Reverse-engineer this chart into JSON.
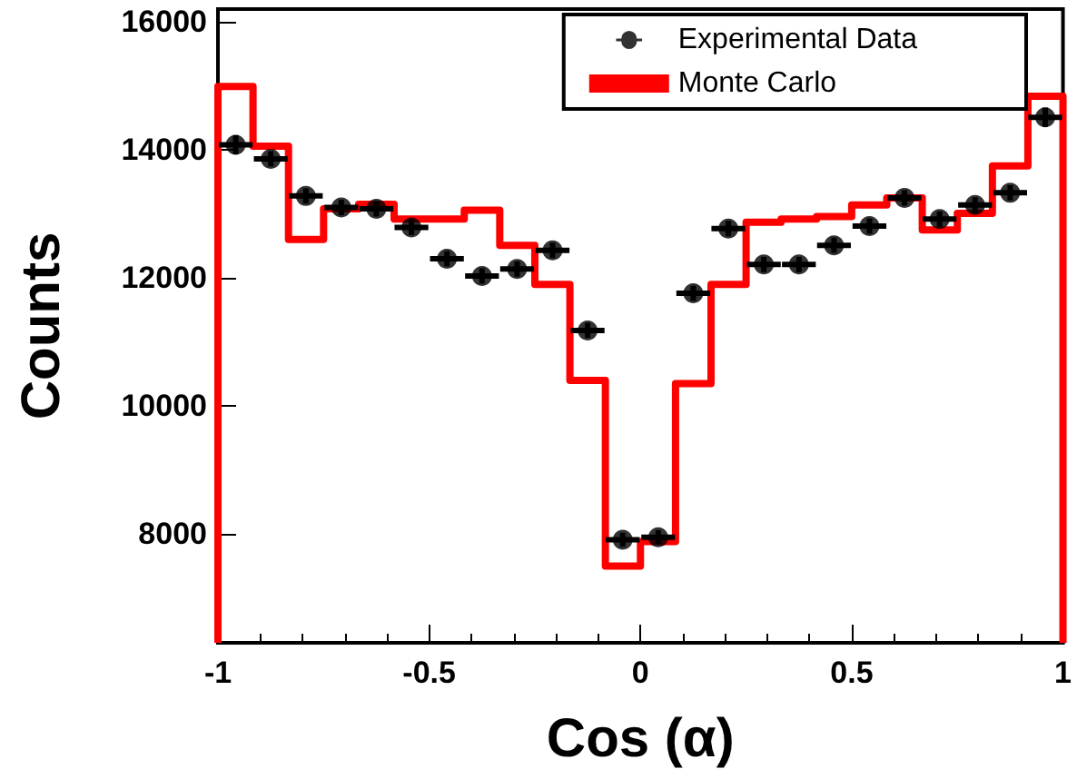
{
  "chart_data": {
    "type": "scatter",
    "xlabel": "Cos (α)",
    "ylabel": "Counts",
    "xlim": [
      -1,
      1
    ],
    "xticks": [
      -1,
      -0.5,
      0,
      0.5,
      1
    ],
    "ylim": [
      6300,
      16200
    ],
    "yticks": [
      8000,
      10000,
      12000,
      14000,
      16000
    ],
    "grid": false,
    "legend": "top right",
    "marker": "circle",
    "series": [
      {
        "name": "Experimental Data",
        "color": "#000000",
        "x": [
          -0.958,
          -0.875,
          -0.792,
          -0.708,
          -0.625,
          -0.542,
          -0.458,
          -0.375,
          -0.292,
          -0.208,
          -0.125,
          -0.042,
          0.042,
          0.125,
          0.208,
          0.292,
          0.375,
          0.458,
          0.542,
          0.625,
          0.708,
          0.792,
          0.875,
          0.958
        ],
        "values": [
          14080,
          13860,
          13280,
          13100,
          13080,
          12790,
          12300,
          12030,
          12140,
          12430,
          11180,
          7910,
          7950,
          11760,
          12770,
          12210,
          12210,
          12510,
          12810,
          13250,
          12920,
          13140,
          13330,
          14510
        ],
        "errors": [
          150,
          120,
          120,
          120,
          120,
          120,
          120,
          120,
          120,
          120,
          120,
          110,
          110,
          120,
          120,
          120,
          120,
          120,
          120,
          120,
          120,
          120,
          120,
          150
        ],
        "xerrors": [
          0.04,
          0.04,
          0.04,
          0.04,
          0.04,
          0.04,
          0.04,
          0.04,
          0.04,
          0.04,
          0.04,
          0.04,
          0.04,
          0.04,
          0.04,
          0.04,
          0.04,
          0.04,
          0.04,
          0.04,
          0.04,
          0.04,
          0.04,
          0.04
        ]
      },
      {
        "name": "Monte Carlo",
        "type": "histogram",
        "color": "#ff0000",
        "bins": [
          -1,
          -0.917,
          -0.833,
          -0.75,
          -0.667,
          -0.583,
          -0.5,
          -0.417,
          -0.333,
          -0.25,
          -0.167,
          -0.083,
          0,
          0.083,
          0.167,
          0.25,
          0.333,
          0.417,
          0.5,
          0.583,
          0.667,
          0.75,
          0.833,
          0.917,
          1
        ],
        "values": [
          14990,
          14060,
          12600,
          13080,
          13150,
          12920,
          12920,
          13060,
          12510,
          11900,
          10400,
          7500,
          7880,
          10350,
          11900,
          12870,
          12920,
          12960,
          13140,
          13250,
          12750,
          13010,
          13750,
          14840
        ]
      }
    ]
  }
}
